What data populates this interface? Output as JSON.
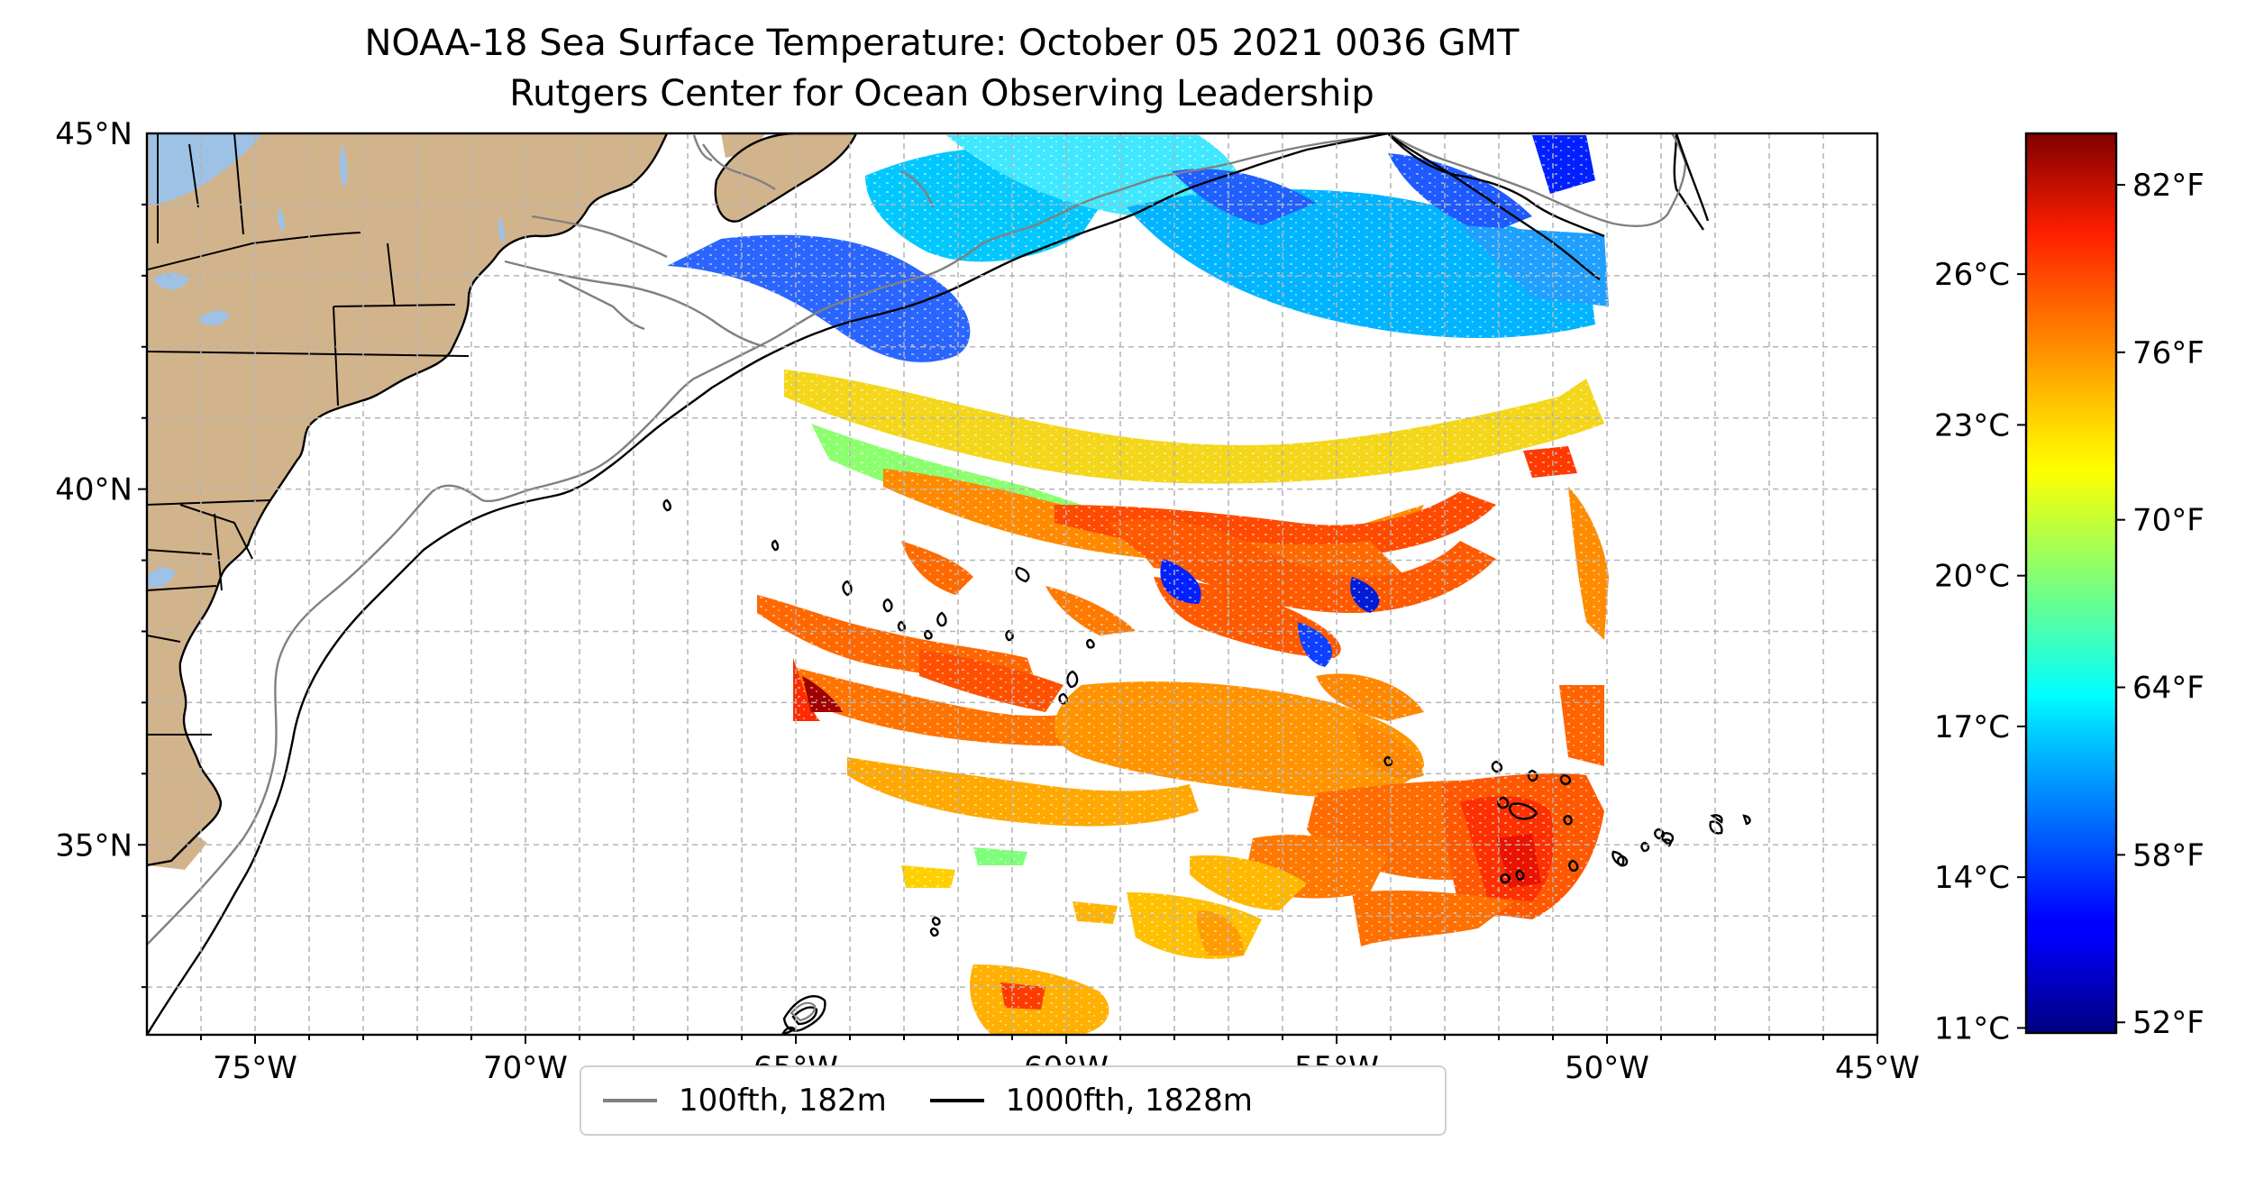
{
  "title": "NOAA-18 Sea Surface Temperature: October 05 2021 0036 GMT",
  "subtitle": "Rutgers Center for Ocean Observing Leadership",
  "map": {
    "lon_range": [
      -77,
      -45
    ],
    "lat_range": [
      32.33,
      45
    ],
    "x_ticks": [
      {
        "value": -75,
        "label": "75°W"
      },
      {
        "value": -70,
        "label": "70°W"
      },
      {
        "value": -65,
        "label": "65°W"
      },
      {
        "value": -60,
        "label": "60°W"
      },
      {
        "value": -55,
        "label": "55°W"
      },
      {
        "value": -50,
        "label": "50°W"
      },
      {
        "value": -45,
        "label": "45°W"
      }
    ],
    "y_ticks": [
      {
        "value": 45,
        "label": "45°N"
      },
      {
        "value": 40,
        "label": "40°N"
      },
      {
        "value": 35,
        "label": "35°N"
      }
    ],
    "gridlines": true,
    "land_color": "#d2b48c",
    "lake_color": "#9ec1e6"
  },
  "legend": {
    "placement": "bottom-center",
    "items": [
      {
        "label": "100fth, 182m",
        "color": "#808080"
      },
      {
        "label": "1000fth, 1828m",
        "color": "#000000"
      }
    ]
  },
  "colorbar": {
    "colormap": "jet",
    "celsius_range": [
      10.9,
      28.8
    ],
    "celsius_ticks": [
      {
        "value": 26,
        "label": "26°C"
      },
      {
        "value": 23,
        "label": "23°C"
      },
      {
        "value": 20,
        "label": "20°C"
      },
      {
        "value": 17,
        "label": "17°C"
      },
      {
        "value": 14,
        "label": "14°C"
      },
      {
        "value": 11,
        "label": "11°C"
      }
    ],
    "fahrenheit_ticks": [
      {
        "value": 82,
        "label": "82°F"
      },
      {
        "value": 76,
        "label": "76°F"
      },
      {
        "value": 70,
        "label": "70°F"
      },
      {
        "value": 64,
        "label": "64°F"
      },
      {
        "value": 58,
        "label": "58°F"
      },
      {
        "value": 52,
        "label": "52°F"
      }
    ]
  }
}
